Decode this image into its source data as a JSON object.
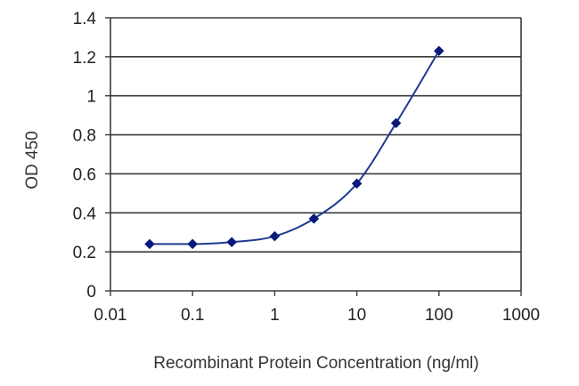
{
  "chart_data": {
    "type": "scatter",
    "title": "",
    "xlabel": "Recombinant Protein Concentration (ng/ml)",
    "ylabel": "OD 450",
    "xscale": "log",
    "xlim": [
      0.01,
      1000
    ],
    "ylim": [
      0,
      1.4
    ],
    "x_ticks": [
      0.01,
      0.1,
      1,
      10,
      100,
      1000
    ],
    "x_tick_labels": [
      "0.01",
      "0.1",
      "1",
      "10",
      "100",
      "1000"
    ],
    "y_ticks": [
      0,
      0.2,
      0.4,
      0.6,
      0.8,
      1,
      1.2,
      1.4
    ],
    "y_tick_labels": [
      "0",
      "0.2",
      "0.4",
      "0.6",
      "0.8",
      "1",
      "1.2",
      "1.4"
    ],
    "grid": "horizontal",
    "legend": "none",
    "fitted_curve": true,
    "series": [
      {
        "x": [
          0.03,
          0.1,
          0.3,
          1,
          3,
          10,
          30,
          100
        ],
        "y": [
          0.24,
          0.24,
          0.25,
          0.28,
          0.37,
          0.55,
          0.86,
          1.23
        ]
      }
    ],
    "colors": {
      "marker": "#0a1a7a",
      "line": "#1f3a8f",
      "grid": "#3a3a3a",
      "axis": "#3a3a3a"
    }
  }
}
